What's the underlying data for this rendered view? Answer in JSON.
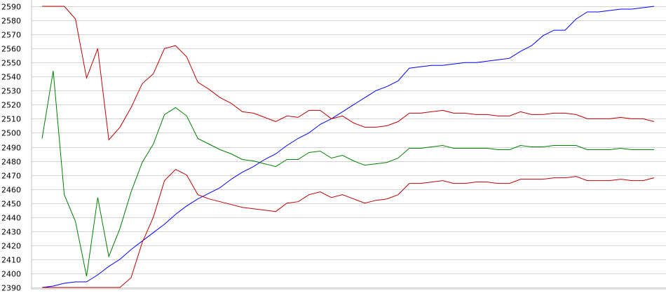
{
  "chart_data": {
    "type": "line",
    "title": "",
    "xlabel": "",
    "ylabel": "",
    "ylim": [
      2390,
      2590
    ],
    "ytick_step": 10,
    "yticks": [
      "2590",
      "2580",
      "2570",
      "2560",
      "2550",
      "2540",
      "2530",
      "2520",
      "2510",
      "2500",
      "2490",
      "2480",
      "2470",
      "2460",
      "2450",
      "2440",
      "2430",
      "2420",
      "2410",
      "2400",
      "2390"
    ],
    "grid": "horizontal",
    "legend": "none",
    "x": [
      1,
      2,
      3,
      4,
      5,
      6,
      7,
      8,
      9,
      10,
      11,
      12,
      13,
      14,
      15,
      16,
      17,
      18,
      19,
      20,
      21,
      22,
      23,
      24,
      25,
      26,
      27,
      28,
      29,
      30,
      31,
      32,
      33,
      34,
      35,
      36,
      37,
      38,
      39,
      40,
      41,
      42,
      43,
      44,
      45,
      46,
      47,
      48,
      49,
      50,
      51,
      52,
      53,
      54,
      55,
      56
    ],
    "series": [
      {
        "color": "#0000ff",
        "values": [
          2390,
          2391,
          2393,
          2394,
          2394,
          2399,
          2405,
          2410,
          2417,
          2423,
          2429,
          2435,
          2442,
          2448,
          2453,
          2457,
          2461,
          2467,
          2472,
          2476,
          2481,
          2485,
          2491,
          2496,
          2500,
          2506,
          2510,
          2515,
          2520,
          2525,
          2530,
          2533,
          2537,
          2546,
          2547,
          2548,
          2548,
          2549,
          2550,
          2550,
          2551,
          2552,
          2553,
          2558,
          2562,
          2569,
          2573,
          2573,
          2581,
          2586,
          2586,
          2587,
          2588,
          2588,
          2589,
          2590
        ]
      },
      {
        "color": "#c00000",
        "values": [
          2590,
          2590,
          2590,
          2581,
          2539,
          2560,
          2495,
          2504,
          2518,
          2535,
          2542,
          2560,
          2562,
          2554,
          2536,
          2531,
          2525,
          2521,
          2515,
          2514,
          2511,
          2508,
          2512,
          2511,
          2516,
          2516,
          2510,
          2512,
          2507,
          2504,
          2504,
          2505,
          2508,
          2514,
          2514,
          2515,
          2516,
          2514,
          2514,
          2513,
          2513,
          2512,
          2512,
          2515,
          2513,
          2513,
          2514,
          2514,
          2513,
          2510,
          2510,
          2510,
          2511,
          2510,
          2510,
          2508
        ]
      },
      {
        "color": "#008000",
        "values": [
          2496,
          2544,
          2456,
          2437,
          2398,
          2454,
          2412,
          2432,
          2458,
          2479,
          2492,
          2513,
          2518,
          2512,
          2496,
          2492,
          2488,
          2485,
          2481,
          2480,
          2478,
          2476,
          2481,
          2481,
          2486,
          2487,
          2482,
          2484,
          2480,
          2477,
          2478,
          2479,
          2482,
          2489,
          2489,
          2490,
          2491,
          2489,
          2489,
          2489,
          2489,
          2488,
          2488,
          2491,
          2490,
          2490,
          2491,
          2491,
          2491,
          2488,
          2488,
          2488,
          2489,
          2488,
          2488,
          2488
        ]
      },
      {
        "color": "#c00000",
        "values": [
          2390,
          2390,
          2390,
          2390,
          2390,
          2390,
          2390,
          2390,
          2397,
          2422,
          2440,
          2466,
          2474,
          2470,
          2456,
          2453,
          2451,
          2449,
          2447,
          2446,
          2445,
          2444,
          2450,
          2451,
          2456,
          2458,
          2454,
          2456,
          2453,
          2450,
          2452,
          2453,
          2456,
          2464,
          2464,
          2465,
          2466,
          2464,
          2464,
          2465,
          2465,
          2464,
          2464,
          2467,
          2467,
          2467,
          2468,
          2468,
          2469,
          2466,
          2466,
          2466,
          2467,
          2466,
          2466,
          2468
        ]
      }
    ]
  }
}
